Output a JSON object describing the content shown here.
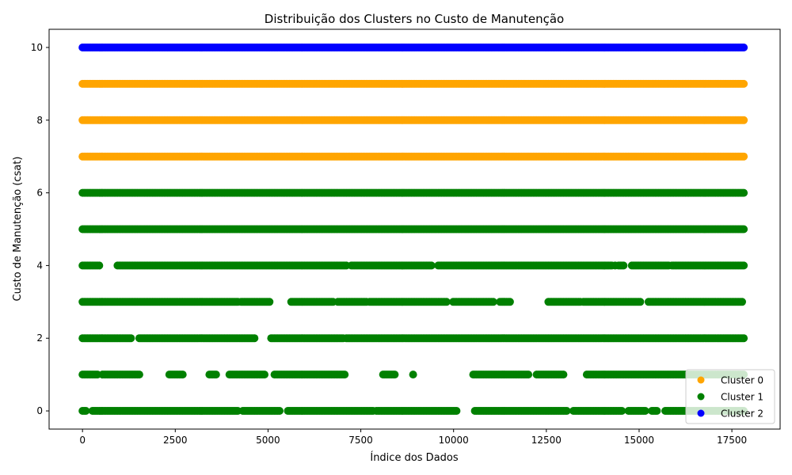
{
  "chart_data": {
    "type": "scatter",
    "title": "Distribuição dos Clusters no Custo de Manutenção",
    "xlabel": "Índice dos Dados",
    "ylabel": "Custo de Manutenção (csat)",
    "xlim": [
      -900,
      18800
    ],
    "ylim": [
      -0.5,
      10.5
    ],
    "xticks": [
      0,
      2500,
      5000,
      7500,
      10000,
      12500,
      15000,
      17500
    ],
    "yticks": [
      0,
      2,
      4,
      6,
      8,
      10
    ],
    "grid": false,
    "legend_position": "lower right",
    "x_range": [
      0,
      17850
    ],
    "series": [
      {
        "name": "Cluster 0",
        "color": "#ffa500",
        "levels": [
          7,
          8,
          9
        ]
      },
      {
        "name": "Cluster 1",
        "color": "#008000",
        "levels": [
          0,
          1,
          2,
          3,
          4,
          5,
          6
        ]
      },
      {
        "name": "Cluster 2",
        "color": "#0000ff",
        "levels": [
          10
        ]
      }
    ]
  }
}
